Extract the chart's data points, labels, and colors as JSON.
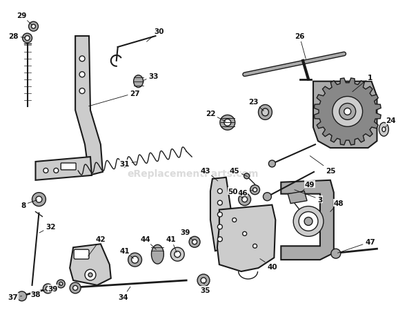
{
  "bg_color": "#ffffff",
  "watermark": "eReplacementParts.com",
  "line_color": "#1a1a1a",
  "label_color": "#111111",
  "label_fontsize": 7.5
}
